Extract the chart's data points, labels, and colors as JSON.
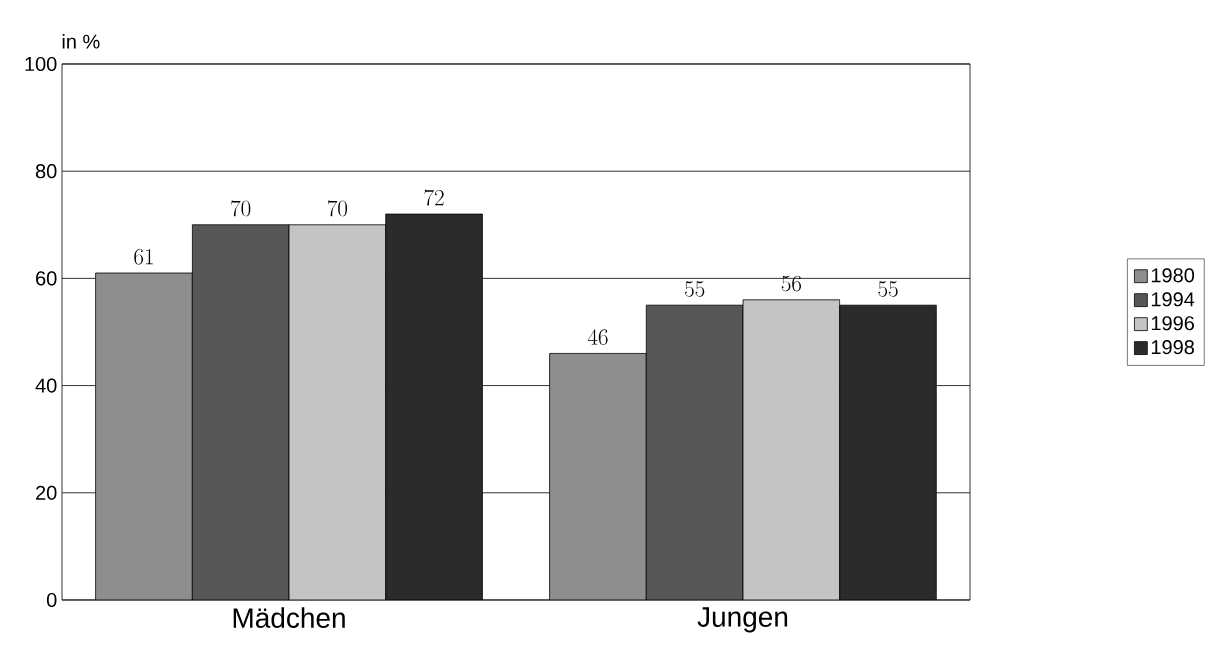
{
  "chart_data": {
    "type": "bar",
    "ylabel": "in %",
    "categories": [
      "Mädchen",
      "Jungen"
    ],
    "series": [
      {
        "name": "1980",
        "color": "#8e8e8e",
        "values": [
          61,
          46
        ]
      },
      {
        "name": "1994",
        "color": "#575757",
        "values": [
          70,
          55
        ]
      },
      {
        "name": "1996",
        "color": "#c4c4c4",
        "values": [
          70,
          56
        ]
      },
      {
        "name": "1998",
        "color": "#2b2b2b",
        "values": [
          72,
          55
        ]
      }
    ],
    "ylim": [
      0,
      100
    ],
    "yticks": [
      0,
      20,
      40,
      60,
      80,
      100
    ],
    "grid": "y",
    "legend": "right",
    "data_labels": true
  }
}
